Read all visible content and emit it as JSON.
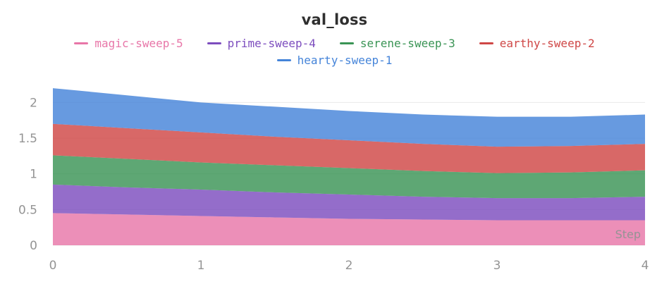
{
  "chart_data": {
    "type": "area",
    "stacked": true,
    "title": "val_loss",
    "xlabel": "Step",
    "title_color": "#2f2f2f",
    "axis_label_color": "#949494",
    "grid_color": "#e9e9e9",
    "background_color": "#ffffff",
    "legend_position": "top",
    "grid": true,
    "x": [
      0,
      0.5,
      1,
      1.5,
      2,
      2.5,
      3,
      3.5,
      4
    ],
    "x_ticks": [
      "0",
      "1",
      "2",
      "3",
      "4"
    ],
    "x_tick_values": [
      0,
      1,
      2,
      3,
      4
    ],
    "y_ticks": [
      "0",
      "0.5",
      "1",
      "1.5",
      "2"
    ],
    "y_tick_values": [
      0,
      0.5,
      1,
      1.5,
      2
    ],
    "xlim": [
      0,
      4
    ],
    "ylim": [
      0,
      2.25
    ],
    "series": [
      {
        "name": "magic-sweep-5",
        "color": "#e876a8",
        "values": [
          0.45,
          0.43,
          0.41,
          0.39,
          0.37,
          0.36,
          0.35,
          0.35,
          0.35
        ]
      },
      {
        "name": "prime-sweep-4",
        "color": "#7c4dbe",
        "values": [
          0.4,
          0.38,
          0.37,
          0.35,
          0.34,
          0.32,
          0.31,
          0.31,
          0.33
        ]
      },
      {
        "name": "serene-sweep-3",
        "color": "#3a9455",
        "values": [
          0.41,
          0.4,
          0.38,
          0.38,
          0.37,
          0.36,
          0.35,
          0.36,
          0.37
        ]
      },
      {
        "name": "earthy-sweep-2",
        "color": "#cf4746",
        "values": [
          0.44,
          0.43,
          0.42,
          0.4,
          0.39,
          0.38,
          0.37,
          0.37,
          0.37
        ]
      },
      {
        "name": "hearty-sweep-1",
        "color": "#4584d9",
        "values": [
          0.5,
          0.46,
          0.42,
          0.42,
          0.41,
          0.41,
          0.42,
          0.41,
          0.41
        ]
      }
    ],
    "legend_rows": [
      [
        "magic-sweep-5",
        "prime-sweep-4",
        "serene-sweep-3",
        "earthy-sweep-2"
      ],
      [
        "hearty-sweep-1"
      ]
    ]
  }
}
